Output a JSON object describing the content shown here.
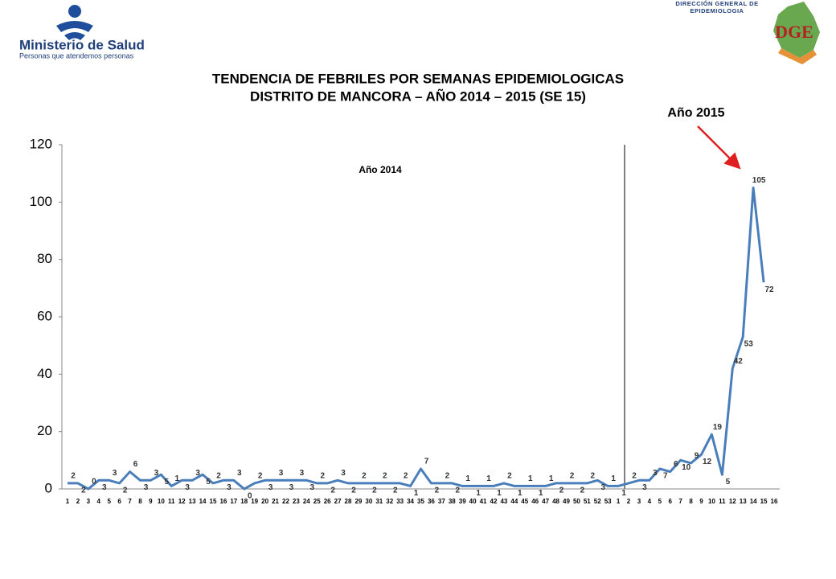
{
  "header": {
    "ministry": "Ministerio de Salud",
    "slogan": "Personas que atendemos personas",
    "dge_text": "DIRECCIÓN GENERAL DE EPIDEMIOLOGIA",
    "dge_letters": "DGE"
  },
  "chart_data": {
    "type": "line",
    "title": "TENDENCIA DE FEBRILES POR SEMANAS EPIDEMIOLOGICAS",
    "subtitle": "DISTRITO DE MANCORA – AÑO 2014 – 2015 (SE 15)",
    "annotations": [
      "Año 2014",
      "Año 2015"
    ],
    "categories": [
      "1",
      "2",
      "3",
      "4",
      "5",
      "6",
      "7",
      "8",
      "9",
      "10",
      "11",
      "12",
      "13",
      "14",
      "15",
      "16",
      "17",
      "18",
      "19",
      "20",
      "21",
      "22",
      "23",
      "24",
      "25",
      "26",
      "27",
      "28",
      "29",
      "30",
      "31",
      "32",
      "33",
      "34",
      "35",
      "36",
      "37",
      "38",
      "39",
      "40",
      "41",
      "42",
      "43",
      "44",
      "45",
      "46",
      "47",
      "48",
      "49",
      "50",
      "51",
      "52",
      "53",
      "1",
      "2",
      "3",
      "4",
      "5",
      "6",
      "7",
      "8",
      "9",
      "10",
      "11",
      "12",
      "13",
      "14",
      "15",
      "16"
    ],
    "values": [
      2,
      2,
      0,
      3,
      3,
      2,
      6,
      3,
      3,
      5,
      1,
      3,
      3,
      5,
      2,
      3,
      3,
      0,
      2,
      3,
      3,
      3,
      3,
      3,
      2,
      2,
      3,
      2,
      2,
      2,
      2,
      2,
      2,
      1,
      7,
      2,
      2,
      2,
      1,
      1,
      1,
      1,
      2,
      1,
      1,
      1,
      1,
      2,
      2,
      2,
      2,
      3,
      1,
      1,
      2,
      3,
      3,
      7,
      6,
      10,
      9,
      12,
      19,
      5,
      42,
      53,
      105,
      72,
      null
    ],
    "color": "#4a7ebb",
    "ylim": [
      0,
      120
    ],
    "yticks": [
      0,
      20,
      40,
      60,
      80,
      100,
      120
    ],
    "grid": false
  }
}
